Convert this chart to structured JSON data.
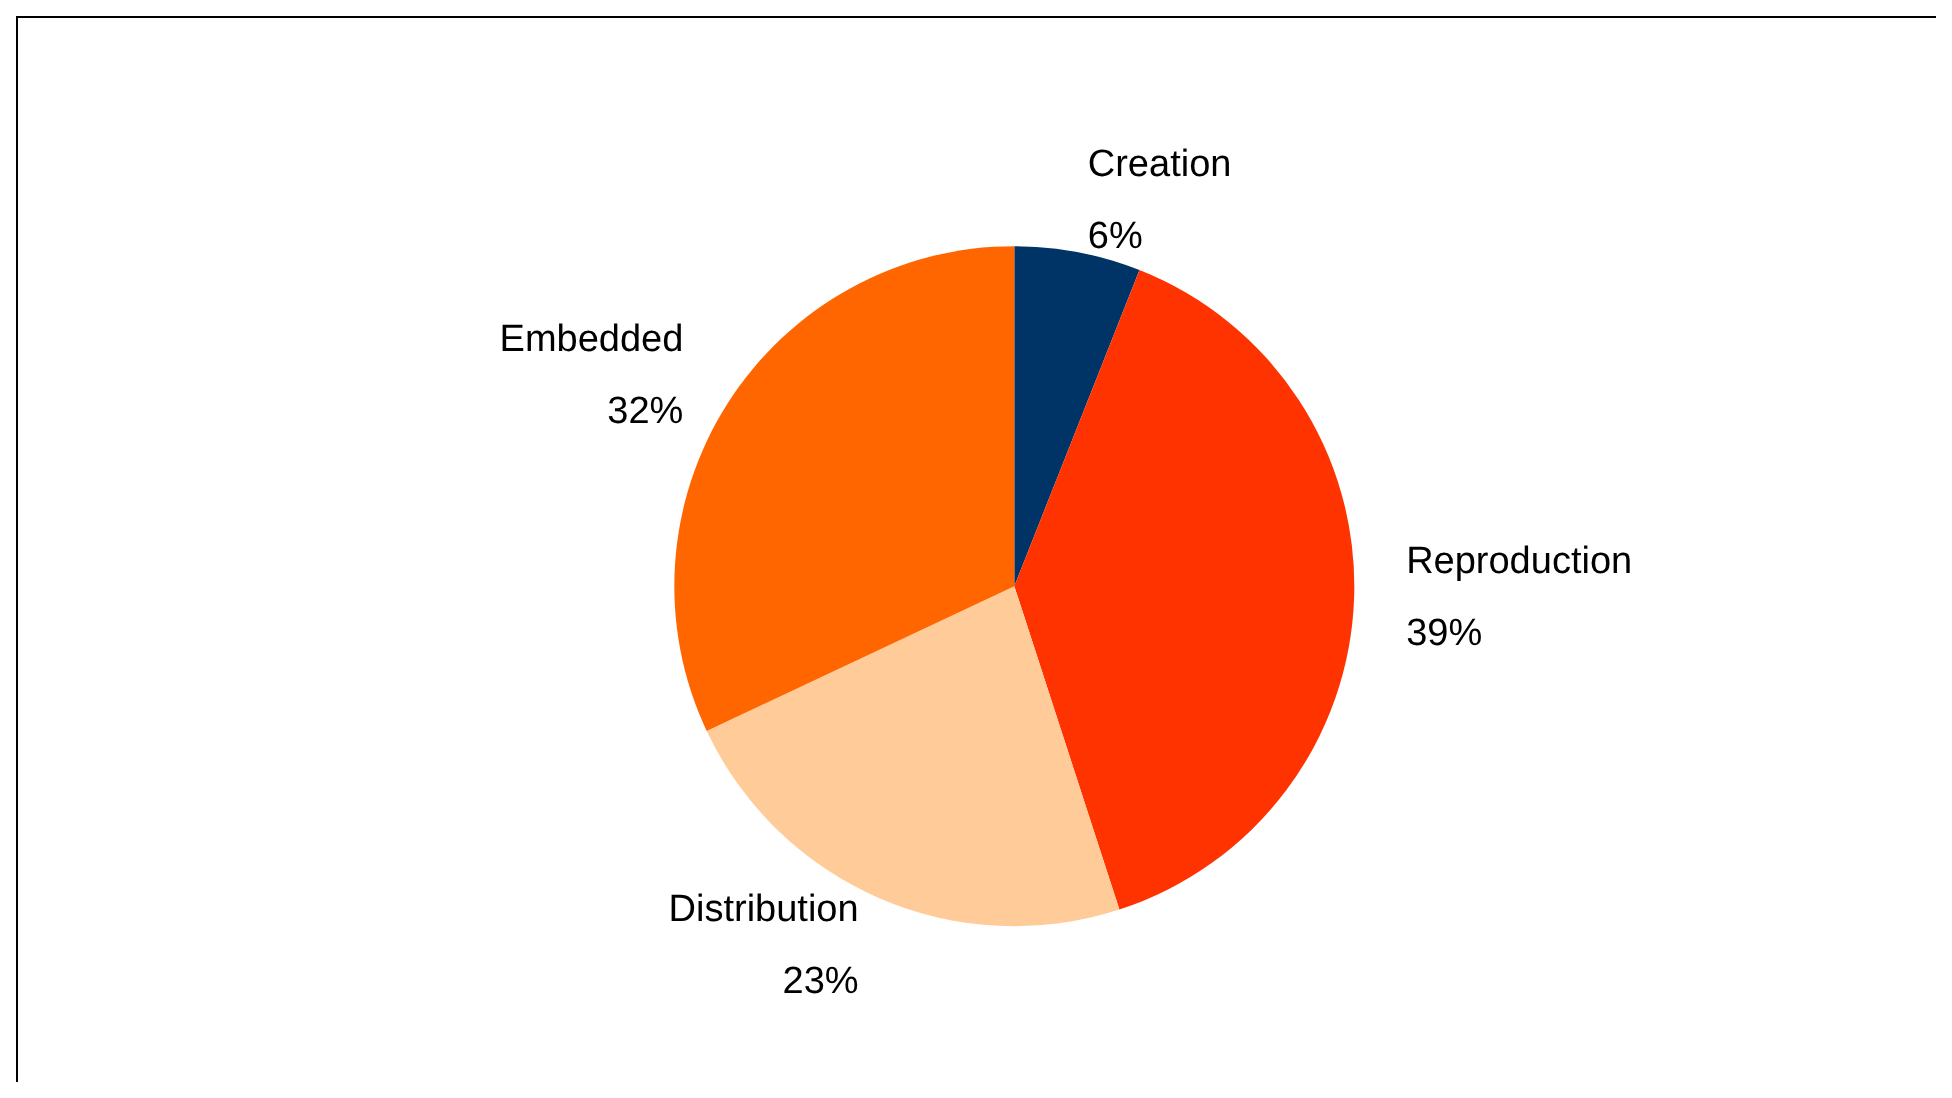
{
  "chart_data": {
    "type": "pie",
    "categories": [
      "Creation",
      "Reproduction",
      "Distribution",
      "Embedded"
    ],
    "values": [
      6,
      39,
      23,
      32
    ],
    "value_labels": [
      "6%",
      "39%",
      "23%",
      "32%"
    ],
    "colors": [
      "#003366",
      "#ff3300",
      "#ffcc99",
      "#ff6600"
    ],
    "legend": false
  }
}
